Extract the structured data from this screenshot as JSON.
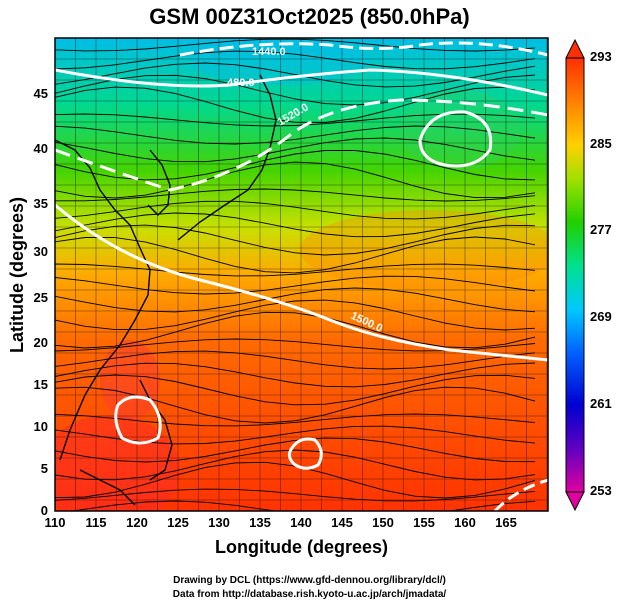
{
  "title": "GSM 00Z31Oct2025 (850.0hPa)",
  "x_axis_label": "Longitude (degrees)",
  "y_axis_label": "Latitude  (degrees)",
  "x_ticks": [
    "110",
    "115",
    "120",
    "125",
    "130",
    "135",
    "140",
    "145",
    "150",
    "155",
    "160",
    "165"
  ],
  "y_ticks": [
    "0",
    "5",
    "10",
    "15",
    "20",
    "25",
    "30",
    "35",
    "40",
    "45"
  ],
  "colorbar_ticks": [
    "293",
    "285",
    "277",
    "269",
    "261",
    "253"
  ],
  "contour_labels": [
    "1440.0",
    "480.0",
    "1520.0",
    "1500.0"
  ],
  "credits": {
    "line1": "Drawing by DCL (https://www.gfd-dennou.org/library/dcl/)",
    "line2": "Data from http://database.rish.kyoto-u.ac.jp/arch/jmadata/"
  },
  "colors": {
    "warm": "#ff3300",
    "cool": "#00c8ff",
    "contour": "#ffffff",
    "streamline": "#000000"
  },
  "map_extent": {
    "lon": [
      110,
      170
    ],
    "lat": [
      0,
      50
    ]
  },
  "colorbar_range": [
    253,
    293
  ]
}
